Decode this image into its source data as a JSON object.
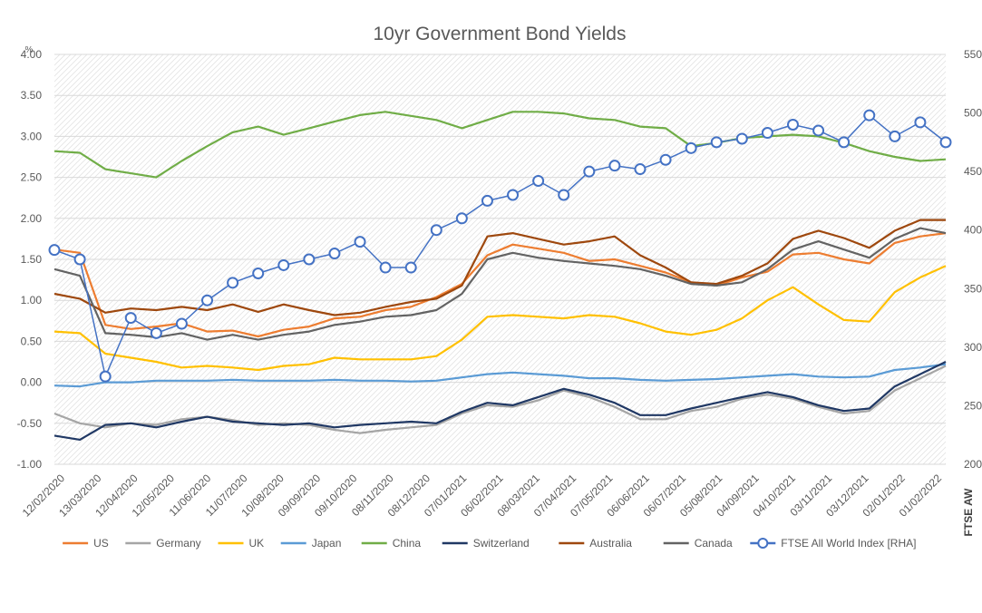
{
  "chart_data": {
    "type": "line",
    "title": "10yr Government Bond Yields",
    "y_left_unit_label": "%",
    "y_right_label": "FTSE AW",
    "ylim": [
      -1.0,
      4.0
    ],
    "ylim_right": [
      200,
      550
    ],
    "y_ticks_left": [
      "-1.00",
      "-0.50",
      "0.00",
      "0.50",
      "1.00",
      "1.50",
      "2.00",
      "2.50",
      "3.00",
      "3.50",
      "4.00"
    ],
    "y_ticks_right": [
      "200",
      "250",
      "300",
      "350",
      "400",
      "450",
      "500",
      "550"
    ],
    "x_ticks": [
      "12/02/2020",
      "13/03/2020",
      "12/04/2020",
      "12/05/2020",
      "11/06/2020",
      "11/07/2020",
      "10/08/2020",
      "09/09/2020",
      "09/10/2020",
      "08/11/2020",
      "08/12/2020",
      "07/01/2021",
      "06/02/2021",
      "08/03/2021",
      "07/04/2021",
      "07/05/2021",
      "06/06/2021",
      "06/07/2021",
      "05/08/2021",
      "04/09/2021",
      "04/10/2021",
      "03/11/2021",
      "03/12/2021",
      "02/01/2022",
      "01/02/2022"
    ],
    "legend_position": "bottom",
    "series": [
      {
        "name": "US",
        "color": "#ED7D31",
        "axis": "left",
        "values": [
          1.62,
          1.58,
          0.7,
          0.65,
          0.68,
          0.72,
          0.62,
          0.63,
          0.56,
          0.64,
          0.68,
          0.78,
          0.8,
          0.88,
          0.92,
          1.04,
          1.2,
          1.55,
          1.68,
          1.63,
          1.58,
          1.48,
          1.5,
          1.42,
          1.34,
          1.22,
          1.18,
          1.28,
          1.35,
          1.56,
          1.58,
          1.5,
          1.45,
          1.7,
          1.78,
          1.82
        ]
      },
      {
        "name": "Germany",
        "color": "#A5A5A5",
        "axis": "left",
        "values": [
          -0.38,
          -0.5,
          -0.55,
          -0.5,
          -0.52,
          -0.45,
          -0.42,
          -0.46,
          -0.52,
          -0.5,
          -0.52,
          -0.58,
          -0.62,
          -0.58,
          -0.55,
          -0.52,
          -0.38,
          -0.28,
          -0.3,
          -0.22,
          -0.1,
          -0.18,
          -0.3,
          -0.45,
          -0.45,
          -0.35,
          -0.3,
          -0.2,
          -0.15,
          -0.2,
          -0.3,
          -0.38,
          -0.35,
          -0.1,
          0.05,
          0.2
        ]
      },
      {
        "name": "UK",
        "color": "#FFC000",
        "axis": "left",
        "values": [
          0.62,
          0.6,
          0.35,
          0.3,
          0.25,
          0.18,
          0.2,
          0.18,
          0.15,
          0.2,
          0.22,
          0.3,
          0.28,
          0.28,
          0.28,
          0.32,
          0.52,
          0.8,
          0.82,
          0.8,
          0.78,
          0.82,
          0.8,
          0.72,
          0.62,
          0.58,
          0.64,
          0.78,
          1.0,
          1.16,
          0.95,
          0.76,
          0.74,
          1.1,
          1.28,
          1.42
        ]
      },
      {
        "name": "Japan",
        "color": "#5B9BD5",
        "axis": "left",
        "values": [
          -0.04,
          -0.05,
          0.0,
          0.0,
          0.02,
          0.02,
          0.02,
          0.03,
          0.02,
          0.02,
          0.02,
          0.03,
          0.02,
          0.02,
          0.01,
          0.02,
          0.06,
          0.1,
          0.12,
          0.1,
          0.08,
          0.05,
          0.05,
          0.03,
          0.02,
          0.03,
          0.04,
          0.06,
          0.08,
          0.1,
          0.07,
          0.06,
          0.07,
          0.15,
          0.18,
          0.22
        ]
      },
      {
        "name": "China",
        "color": "#70AD47",
        "axis": "left",
        "values": [
          2.82,
          2.8,
          2.6,
          2.55,
          2.5,
          2.7,
          2.88,
          3.05,
          3.12,
          3.02,
          3.1,
          3.18,
          3.26,
          3.3,
          3.25,
          3.2,
          3.1,
          3.2,
          3.3,
          3.3,
          3.28,
          3.22,
          3.2,
          3.12,
          3.1,
          2.88,
          2.92,
          2.98,
          3.0,
          3.02,
          3.0,
          2.92,
          2.82,
          2.75,
          2.7,
          2.72
        ]
      },
      {
        "name": "Switzerland",
        "color": "#203864",
        "axis": "left",
        "values": [
          -0.65,
          -0.7,
          -0.52,
          -0.5,
          -0.55,
          -0.48,
          -0.42,
          -0.48,
          -0.5,
          -0.52,
          -0.5,
          -0.55,
          -0.52,
          -0.5,
          -0.48,
          -0.5,
          -0.36,
          -0.25,
          -0.28,
          -0.18,
          -0.08,
          -0.15,
          -0.25,
          -0.4,
          -0.4,
          -0.32,
          -0.25,
          -0.18,
          -0.12,
          -0.18,
          -0.28,
          -0.35,
          -0.32,
          -0.05,
          0.1,
          0.25
        ]
      },
      {
        "name": "Australia",
        "color": "#9E480E",
        "axis": "left",
        "values": [
          1.08,
          1.02,
          0.85,
          0.9,
          0.88,
          0.92,
          0.88,
          0.95,
          0.86,
          0.95,
          0.88,
          0.82,
          0.85,
          0.92,
          0.98,
          1.02,
          1.18,
          1.78,
          1.82,
          1.75,
          1.68,
          1.72,
          1.78,
          1.55,
          1.4,
          1.22,
          1.2,
          1.3,
          1.45,
          1.75,
          1.85,
          1.76,
          1.64,
          1.85,
          1.98,
          1.98
        ]
      },
      {
        "name": "Canada",
        "color": "#636363",
        "axis": "left",
        "values": [
          1.38,
          1.3,
          0.6,
          0.58,
          0.55,
          0.6,
          0.52,
          0.58,
          0.52,
          0.58,
          0.62,
          0.7,
          0.74,
          0.8,
          0.82,
          0.88,
          1.08,
          1.5,
          1.58,
          1.52,
          1.48,
          1.45,
          1.42,
          1.38,
          1.3,
          1.2,
          1.18,
          1.22,
          1.38,
          1.62,
          1.72,
          1.62,
          1.52,
          1.75,
          1.88,
          1.82
        ]
      },
      {
        "name": "FTSE All World Index [RHA]",
        "color": "#4472C4",
        "axis": "right",
        "values": [
          383,
          375,
          275,
          325,
          312,
          320,
          340,
          355,
          363,
          370,
          375,
          380,
          390,
          368,
          368,
          400,
          410,
          425,
          430,
          442,
          430,
          450,
          455,
          452,
          460,
          470,
          475,
          478,
          483,
          490,
          485,
          475,
          498,
          480,
          492,
          475
        ]
      }
    ]
  }
}
